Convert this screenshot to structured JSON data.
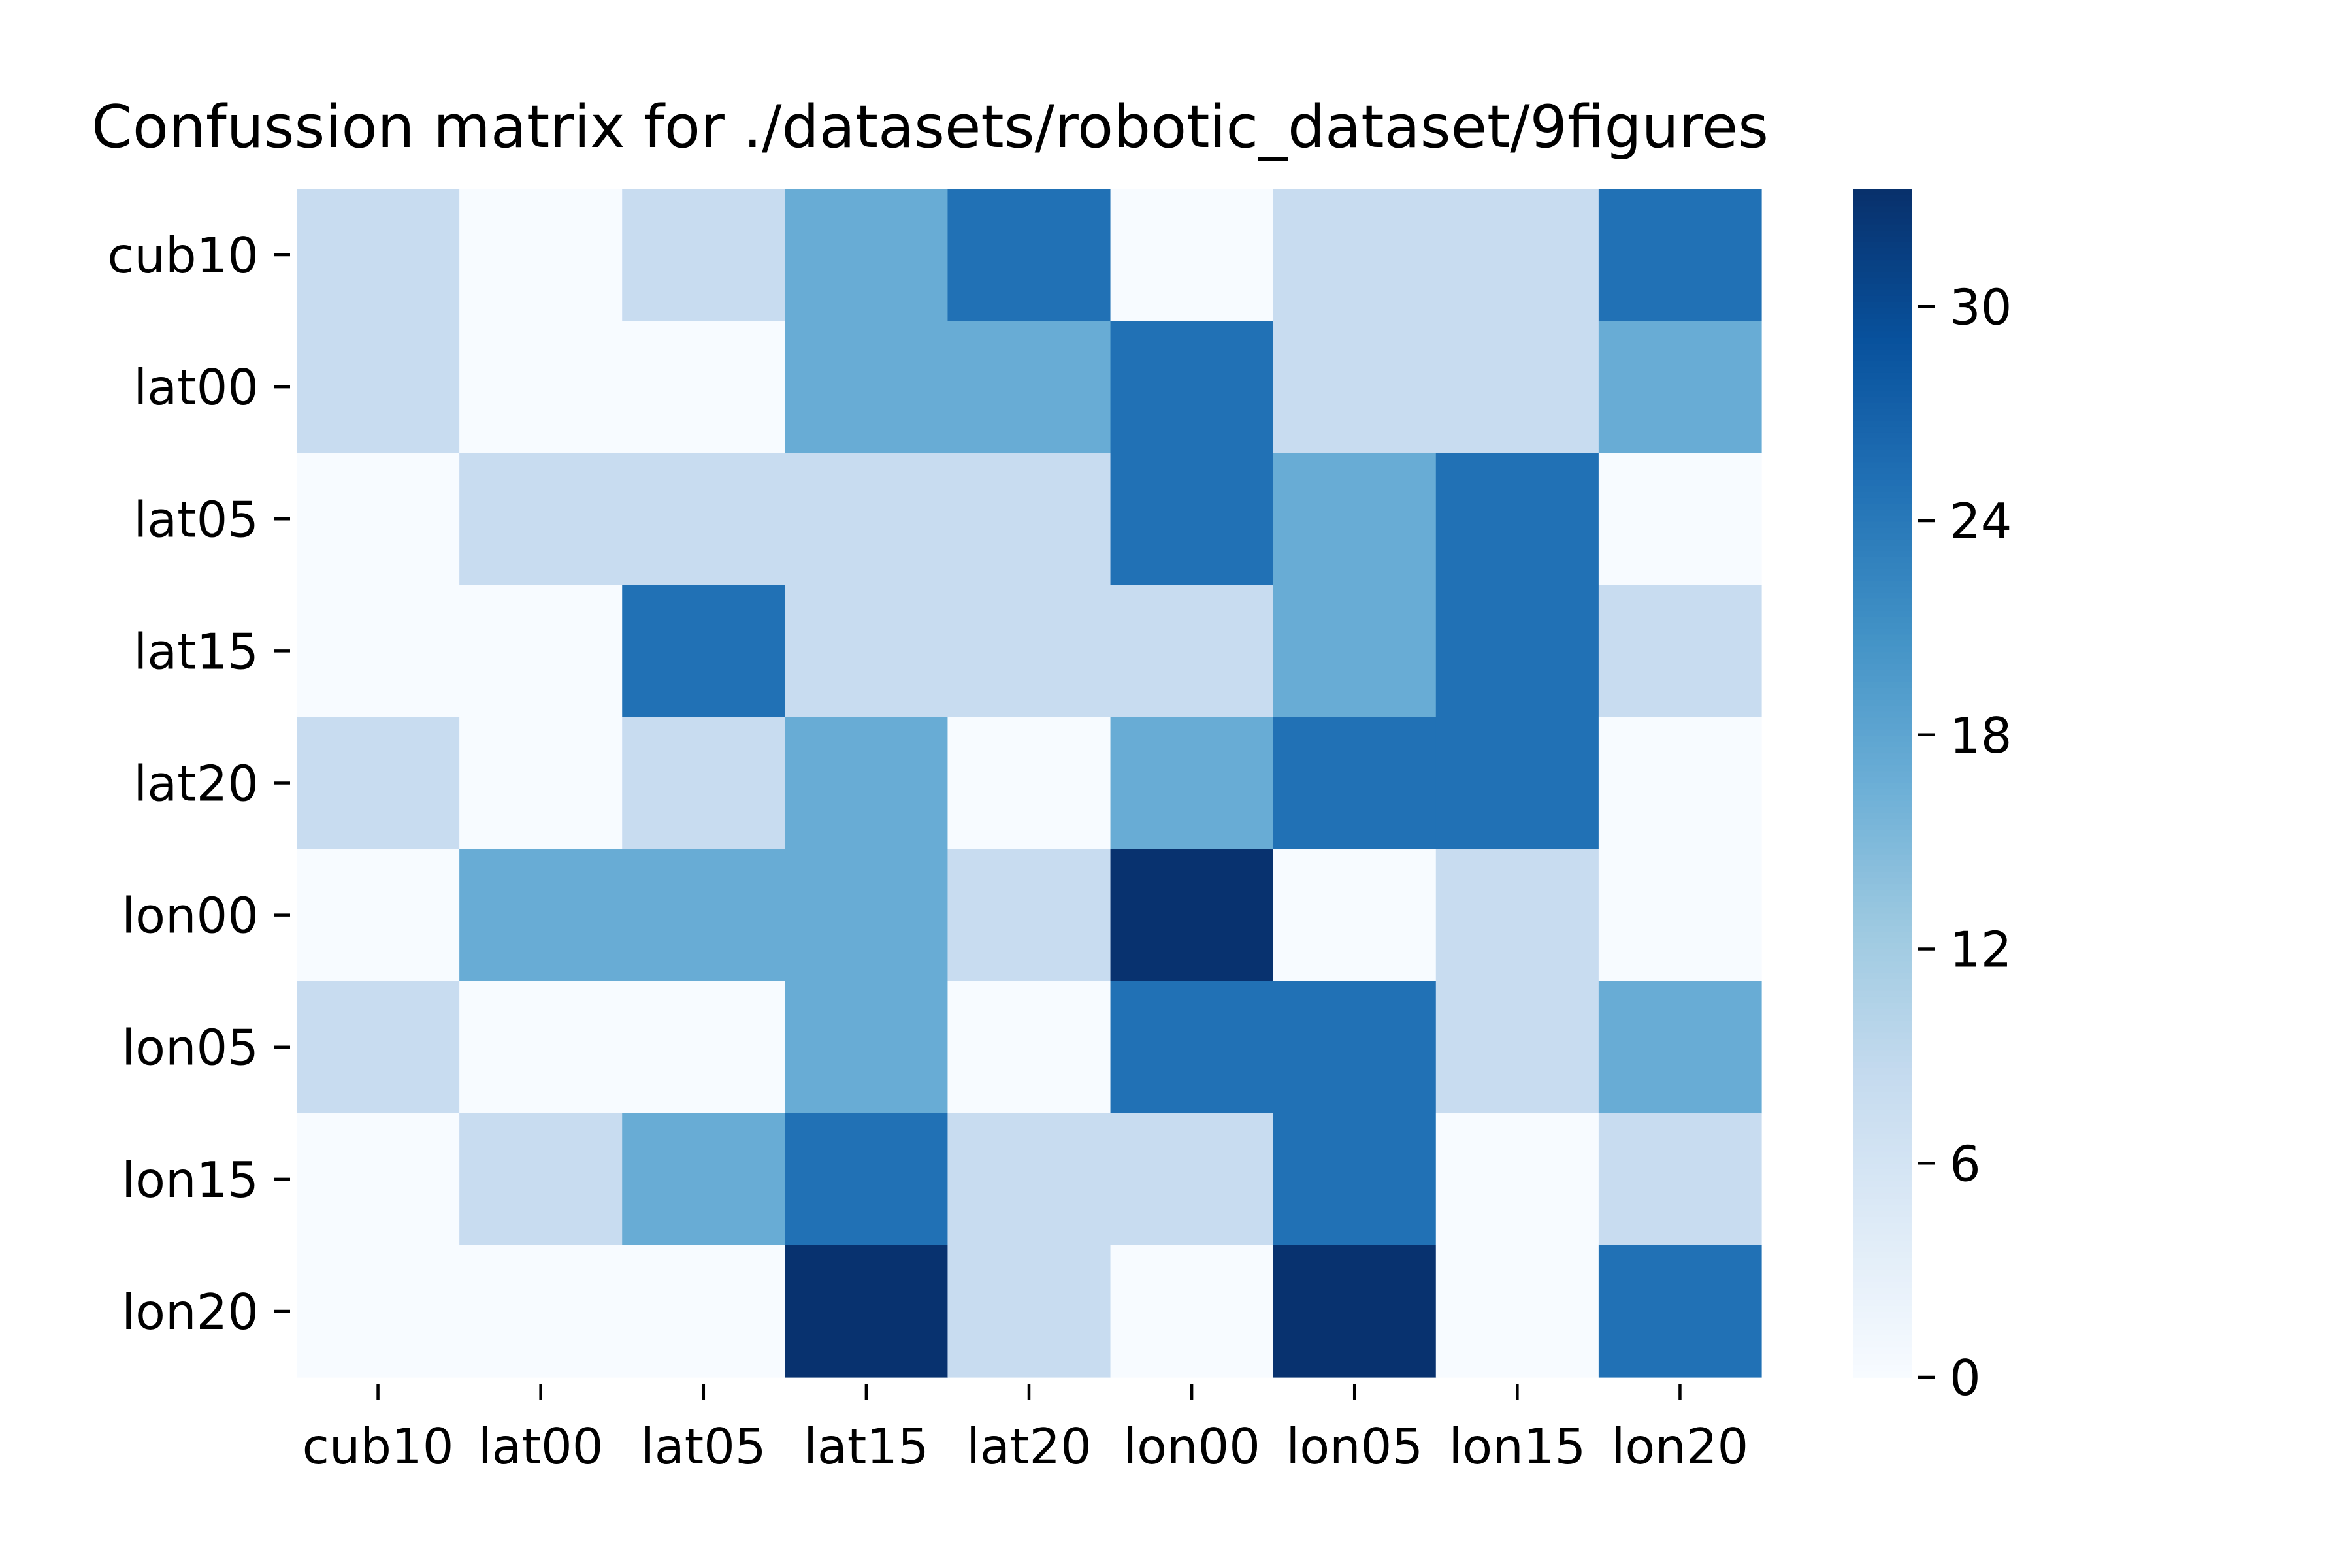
{
  "chart_data": {
    "type": "heatmap",
    "title": "Confussion matrix for ./datasets/robotic_dataset/9figures",
    "xlabel": "",
    "ylabel": "",
    "x_categories": [
      "cub10",
      "lat00",
      "lat05",
      "lat15",
      "lat20",
      "lon00",
      "lon05",
      "lon15",
      "lon20"
    ],
    "y_categories": [
      "cub10",
      "lat00",
      "lat05",
      "lat15",
      "lat20",
      "lon00",
      "lon05",
      "lon15",
      "lon20"
    ],
    "values": [
      [
        8,
        0,
        8,
        17,
        25,
        0,
        8,
        8,
        25
      ],
      [
        8,
        0,
        0,
        17,
        17,
        25,
        8,
        8,
        17
      ],
      [
        0,
        8,
        8,
        8,
        8,
        25,
        17,
        25,
        0
      ],
      [
        0,
        0,
        25,
        8,
        8,
        8,
        17,
        25,
        8
      ],
      [
        8,
        0,
        8,
        17,
        0,
        17,
        25,
        25,
        0
      ],
      [
        0,
        17,
        17,
        17,
        8,
        33,
        0,
        8,
        0
      ],
      [
        8,
        0,
        0,
        17,
        0,
        25,
        25,
        8,
        17
      ],
      [
        0,
        8,
        17,
        25,
        8,
        8,
        25,
        0,
        8
      ],
      [
        0,
        0,
        0,
        33,
        8,
        0,
        33,
        0,
        25
      ]
    ],
    "colormap": "Blues",
    "vmin": 0,
    "vmax": 33.3,
    "colorbar_ticks": [
      0,
      6,
      12,
      18,
      24,
      30
    ],
    "grid": false,
    "legend": "colorbar-right"
  }
}
